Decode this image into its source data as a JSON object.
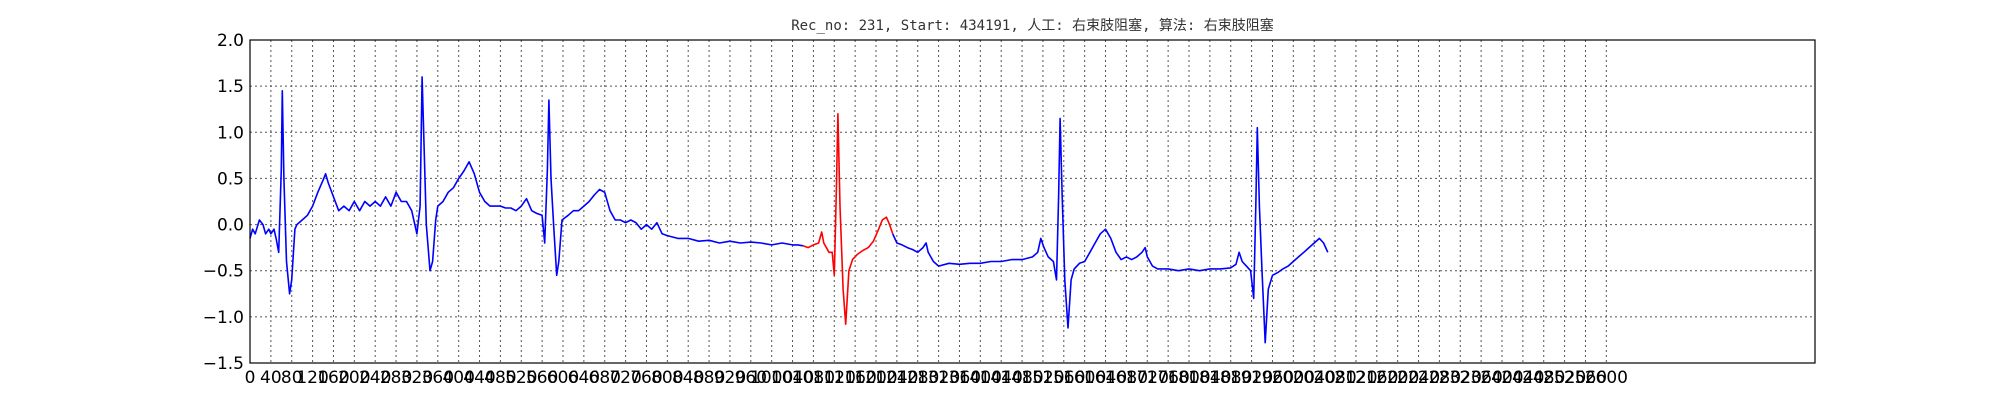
{
  "chart_data": {
    "type": "line",
    "title": "Rec_no: 231, Start: 434191, 人工: 右束肢阻塞, 算法: 右束肢阻塞",
    "xlabel": "",
    "ylabel": "",
    "xlim": [
      0,
      3000
    ],
    "ylim": [
      -1.5,
      2.0
    ],
    "grid": true,
    "y_ticks": [
      "2.0",
      "1.5",
      "1.0",
      "0.5",
      "0.0",
      "−0.5",
      "−1.0",
      "−1.5"
    ],
    "x_ticks": [
      "0",
      "40",
      "80",
      "120",
      "160",
      "200",
      "240",
      "280",
      "320",
      "360",
      "400",
      "440",
      "480",
      "520",
      "560",
      "600",
      "640",
      "680",
      "720",
      "760",
      "800",
      "840",
      "880",
      "920",
      "960",
      "1000",
      "1040",
      "1080",
      "1120",
      "1160",
      "1200",
      "1240",
      "1280",
      "1320",
      "1360",
      "1400",
      "1440",
      "1480",
      "1520",
      "1560",
      "1600",
      "1640",
      "1680",
      "1720",
      "1760",
      "1800",
      "1840",
      "1880",
      "1920",
      "1960",
      "2000",
      "2040",
      "2080",
      "2120",
      "2160",
      "2200",
      "2240",
      "2280",
      "2320",
      "2360",
      "2400",
      "2440",
      "2480",
      "2520",
      "2560",
      "2600"
    ],
    "series": [
      {
        "color": "#0000ff",
        "points": [
          [
            0,
            -0.15
          ],
          [
            5,
            -0.05
          ],
          [
            10,
            -0.1
          ],
          [
            18,
            0.05
          ],
          [
            25,
            0
          ],
          [
            30,
            -0.1
          ],
          [
            36,
            -0.05
          ],
          [
            40,
            -0.1
          ],
          [
            46,
            -0.05
          ],
          [
            50,
            -0.15
          ],
          [
            55,
            -0.3
          ],
          [
            60,
            0.6
          ],
          [
            62,
            1.45
          ],
          [
            65,
            0.5
          ],
          [
            70,
            -0.4
          ],
          [
            76,
            -0.75
          ],
          [
            80,
            -0.6
          ],
          [
            86,
            -0.05
          ],
          [
            90,
            0
          ],
          [
            100,
            0.05
          ],
          [
            110,
            0.1
          ],
          [
            120,
            0.2
          ],
          [
            130,
            0.35
          ],
          [
            140,
            0.48
          ],
          [
            145,
            0.55
          ],
          [
            150,
            0.45
          ],
          [
            160,
            0.3
          ],
          [
            170,
            0.15
          ],
          [
            180,
            0.2
          ],
          [
            190,
            0.15
          ],
          [
            200,
            0.25
          ],
          [
            210,
            0.15
          ],
          [
            220,
            0.25
          ],
          [
            230,
            0.2
          ],
          [
            240,
            0.25
          ],
          [
            250,
            0.2
          ],
          [
            260,
            0.3
          ],
          [
            270,
            0.2
          ],
          [
            280,
            0.35
          ],
          [
            290,
            0.25
          ],
          [
            300,
            0.25
          ],
          [
            310,
            0.15
          ],
          [
            320,
            -0.1
          ],
          [
            326,
            0.2
          ],
          [
            330,
            1.6
          ],
          [
            334,
            0.8
          ],
          [
            338,
            0
          ],
          [
            345,
            -0.5
          ],
          [
            350,
            -0.4
          ],
          [
            356,
            0.05
          ],
          [
            360,
            0.2
          ],
          [
            370,
            0.25
          ],
          [
            380,
            0.35
          ],
          [
            390,
            0.4
          ],
          [
            400,
            0.5
          ],
          [
            410,
            0.58
          ],
          [
            420,
            0.68
          ],
          [
            430,
            0.55
          ],
          [
            440,
            0.35
          ],
          [
            450,
            0.25
          ],
          [
            460,
            0.2
          ],
          [
            470,
            0.2
          ],
          [
            480,
            0.2
          ],
          [
            490,
            0.18
          ],
          [
            500,
            0.18
          ],
          [
            510,
            0.15
          ],
          [
            520,
            0.2
          ],
          [
            530,
            0.28
          ],
          [
            540,
            0.15
          ],
          [
            550,
            0.12
          ],
          [
            560,
            0.1
          ],
          [
            565,
            -0.2
          ],
          [
            570,
            0.6
          ],
          [
            573,
            1.35
          ],
          [
            577,
            0.5
          ],
          [
            582,
            0
          ],
          [
            588,
            -0.55
          ],
          [
            592,
            -0.4
          ],
          [
            598,
            0.05
          ],
          [
            610,
            0.1
          ],
          [
            620,
            0.15
          ],
          [
            630,
            0.15
          ],
          [
            640,
            0.2
          ],
          [
            650,
            0.25
          ],
          [
            660,
            0.32
          ],
          [
            670,
            0.38
          ],
          [
            680,
            0.35
          ],
          [
            690,
            0.15
          ],
          [
            700,
            0.05
          ],
          [
            710,
            0.05
          ],
          [
            720,
            0.02
          ],
          [
            730,
            0.05
          ],
          [
            740,
            0.02
          ],
          [
            750,
            -0.05
          ],
          [
            760,
            0
          ],
          [
            770,
            -0.05
          ],
          [
            780,
            0.02
          ],
          [
            790,
            -0.1
          ],
          [
            800,
            -0.12
          ],
          [
            820,
            -0.15
          ],
          [
            840,
            -0.15
          ],
          [
            860,
            -0.18
          ],
          [
            880,
            -0.17
          ],
          [
            900,
            -0.2
          ],
          [
            920,
            -0.18
          ],
          [
            940,
            -0.2
          ],
          [
            960,
            -0.19
          ],
          [
            980,
            -0.2
          ],
          [
            1000,
            -0.22
          ],
          [
            1020,
            -0.2
          ],
          [
            1040,
            -0.22
          ],
          [
            1050,
            -0.22
          ],
          [
            1060,
            -0.23
          ]
        ]
      },
      {
        "color": "#ff0000",
        "points": [
          [
            1060,
            -0.23
          ],
          [
            1070,
            -0.25
          ],
          [
            1080,
            -0.22
          ],
          [
            1090,
            -0.2
          ],
          [
            1096,
            -0.08
          ],
          [
            1100,
            -0.2
          ],
          [
            1110,
            -0.3
          ],
          [
            1116,
            -0.3
          ],
          [
            1120,
            -0.55
          ],
          [
            1124,
            0.4
          ],
          [
            1127,
            1.2
          ],
          [
            1131,
            0.2
          ],
          [
            1137,
            -0.7
          ],
          [
            1142,
            -1.08
          ],
          [
            1148,
            -0.5
          ],
          [
            1155,
            -0.38
          ],
          [
            1165,
            -0.32
          ],
          [
            1175,
            -0.28
          ],
          [
            1185,
            -0.25
          ],
          [
            1195,
            -0.18
          ],
          [
            1205,
            -0.05
          ],
          [
            1212,
            0.05
          ],
          [
            1220,
            0.08
          ],
          [
            1226,
            0.0
          ],
          [
            1232,
            -0.1
          ]
        ]
      },
      {
        "color": "#0000ff",
        "points": [
          [
            1232,
            -0.1
          ],
          [
            1240,
            -0.2
          ],
          [
            1250,
            -0.22
          ],
          [
            1260,
            -0.25
          ],
          [
            1270,
            -0.27
          ],
          [
            1280,
            -0.3
          ],
          [
            1290,
            -0.25
          ],
          [
            1296,
            -0.2
          ],
          [
            1300,
            -0.3
          ],
          [
            1310,
            -0.4
          ],
          [
            1320,
            -0.45
          ],
          [
            1340,
            -0.42
          ],
          [
            1360,
            -0.43
          ],
          [
            1380,
            -0.42
          ],
          [
            1400,
            -0.42
          ],
          [
            1420,
            -0.4
          ],
          [
            1440,
            -0.4
          ],
          [
            1460,
            -0.38
          ],
          [
            1480,
            -0.38
          ],
          [
            1500,
            -0.35
          ],
          [
            1510,
            -0.3
          ],
          [
            1516,
            -0.15
          ],
          [
            1522,
            -0.25
          ],
          [
            1530,
            -0.35
          ],
          [
            1540,
            -0.4
          ],
          [
            1546,
            -0.6
          ],
          [
            1550,
            0.3
          ],
          [
            1553,
            1.15
          ],
          [
            1557,
            0.3
          ],
          [
            1562,
            -0.6
          ],
          [
            1568,
            -1.12
          ],
          [
            1574,
            -0.6
          ],
          [
            1580,
            -0.48
          ],
          [
            1590,
            -0.42
          ],
          [
            1600,
            -0.4
          ],
          [
            1610,
            -0.3
          ],
          [
            1620,
            -0.2
          ],
          [
            1630,
            -0.1
          ],
          [
            1640,
            -0.05
          ],
          [
            1650,
            -0.15
          ],
          [
            1660,
            -0.3
          ],
          [
            1670,
            -0.38
          ],
          [
            1680,
            -0.35
          ],
          [
            1690,
            -0.38
          ],
          [
            1700,
            -0.35
          ],
          [
            1710,
            -0.3
          ],
          [
            1716,
            -0.25
          ],
          [
            1720,
            -0.35
          ],
          [
            1730,
            -0.45
          ],
          [
            1740,
            -0.48
          ],
          [
            1760,
            -0.48
          ],
          [
            1780,
            -0.5
          ],
          [
            1800,
            -0.48
          ],
          [
            1820,
            -0.5
          ],
          [
            1840,
            -0.48
          ],
          [
            1860,
            -0.48
          ],
          [
            1880,
            -0.47
          ],
          [
            1890,
            -0.43
          ],
          [
            1896,
            -0.3
          ],
          [
            1902,
            -0.4
          ],
          [
            1910,
            -0.45
          ],
          [
            1918,
            -0.5
          ],
          [
            1924,
            -0.8
          ],
          [
            1928,
            0.2
          ],
          [
            1931,
            1.05
          ],
          [
            1935,
            0.2
          ],
          [
            1940,
            -0.5
          ],
          [
            1946,
            -1.28
          ],
          [
            1952,
            -0.7
          ],
          [
            1960,
            -0.55
          ],
          [
            1970,
            -0.52
          ],
          [
            1980,
            -0.48
          ],
          [
            1990,
            -0.45
          ],
          [
            2000,
            -0.4
          ],
          [
            2010,
            -0.35
          ],
          [
            2020,
            -0.3
          ],
          [
            2030,
            -0.25
          ],
          [
            2040,
            -0.2
          ],
          [
            2050,
            -0.15
          ],
          [
            2058,
            -0.2
          ],
          [
            2066,
            -0.3
          ]
        ]
      }
    ]
  }
}
